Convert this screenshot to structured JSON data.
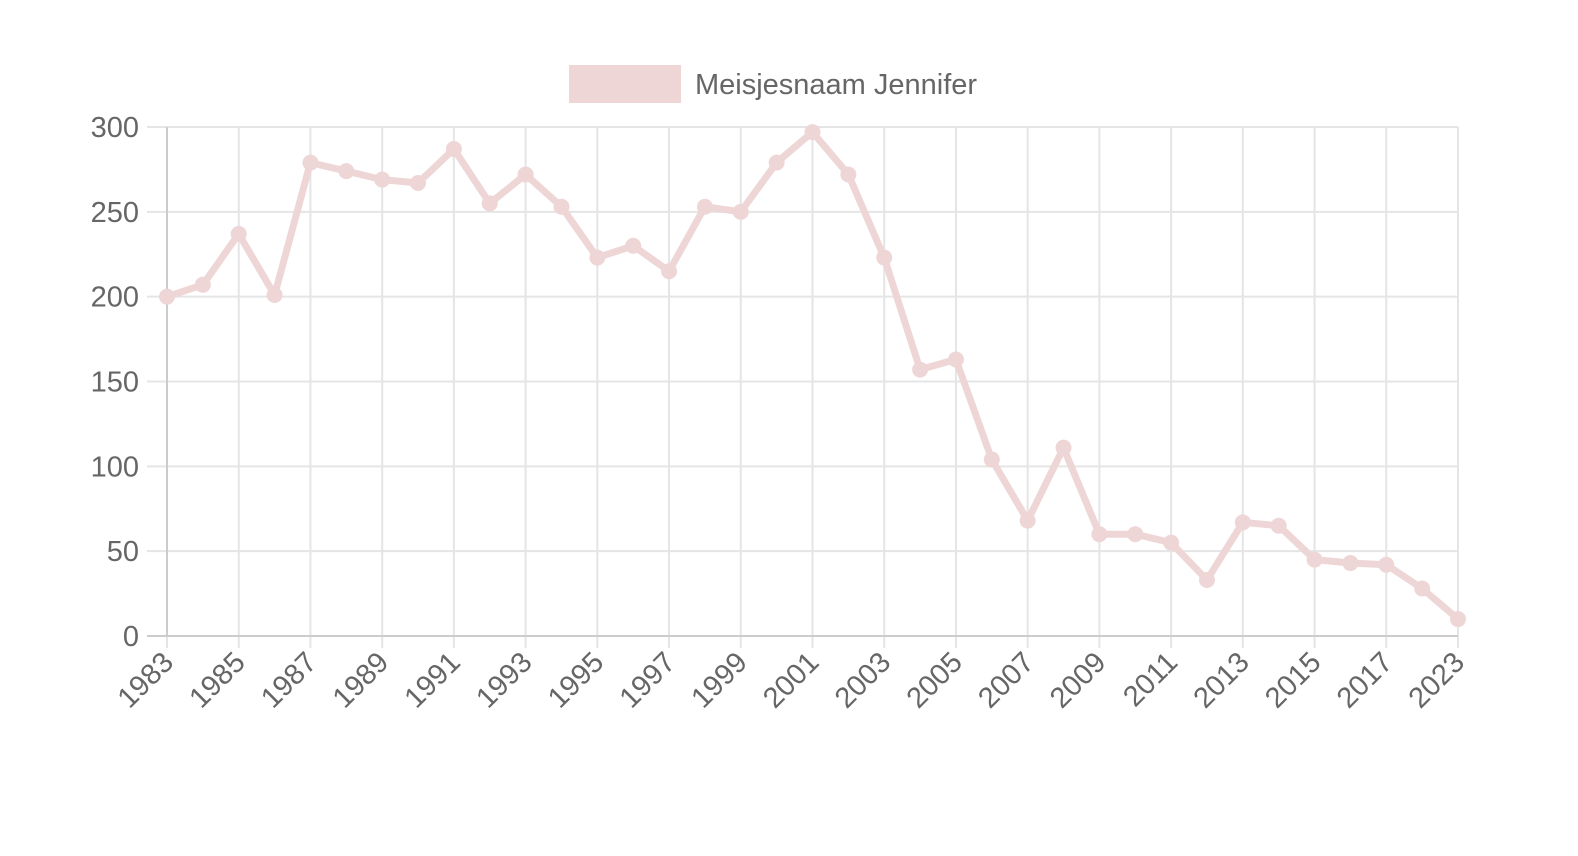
{
  "chart_data": {
    "type": "line",
    "legend_position": "top",
    "grid": true,
    "series": [
      {
        "name": "Meisjesnaam Jennifer",
        "color": "#efd6d6",
        "x": [
          1983,
          1984,
          1985,
          1986,
          1987,
          1988,
          1989,
          1990,
          1991,
          1992,
          1993,
          1994,
          1995,
          1996,
          1997,
          1998,
          1999,
          2000,
          2001,
          2002,
          2003,
          2004,
          2005,
          2006,
          2007,
          2008,
          2009,
          2010,
          2011,
          2012,
          2013,
          2014,
          2015,
          2016,
          2017,
          2018,
          2023
        ],
        "values": [
          200,
          207,
          237,
          201,
          279,
          274,
          269,
          267,
          287,
          255,
          272,
          253,
          223,
          230,
          215,
          253,
          250,
          279,
          297,
          272,
          223,
          157,
          163,
          104,
          68,
          111,
          60,
          60,
          55,
          33,
          67,
          65,
          45,
          43,
          42,
          28,
          10
        ]
      }
    ],
    "x_tick_labels": [
      "1983",
      "1985",
      "1987",
      "1989",
      "1991",
      "1993",
      "1995",
      "1997",
      "1999",
      "2001",
      "2003",
      "2005",
      "2007",
      "2009",
      "2011",
      "2013",
      "2015",
      "2017",
      "2023"
    ],
    "y_ticks": [
      0,
      50,
      100,
      150,
      200,
      250,
      300
    ],
    "ylim": [
      0,
      300
    ],
    "grid_color": "#e5e5e5",
    "axis_color": "#cccccc",
    "text_color": "#666666"
  }
}
